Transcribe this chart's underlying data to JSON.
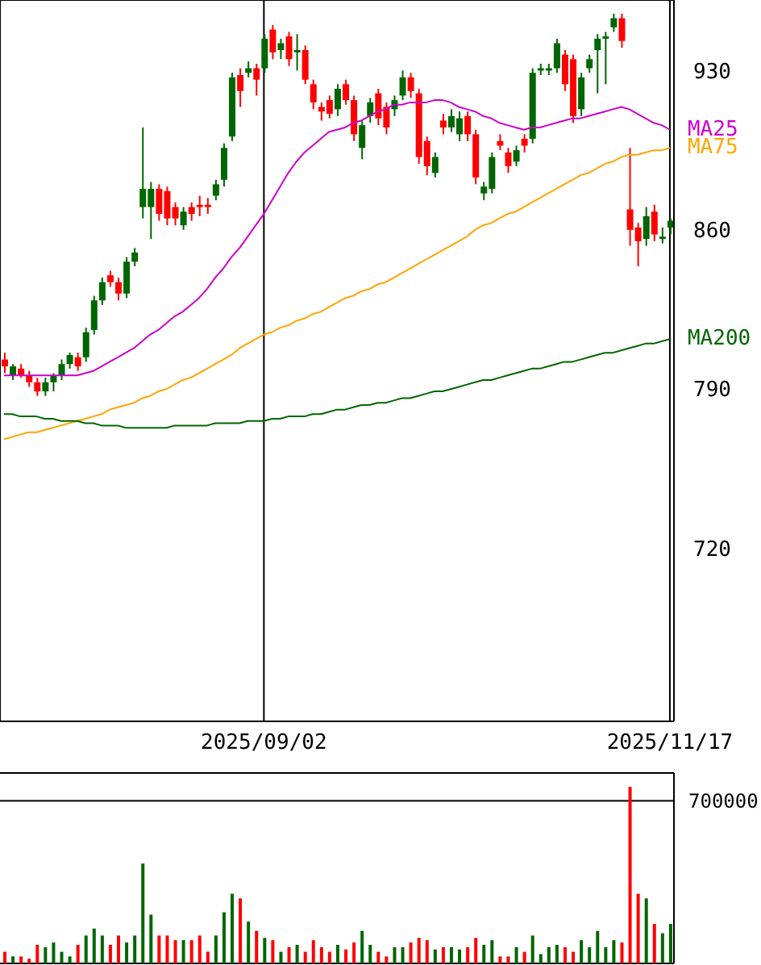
{
  "chart_data": [
    {
      "type": "candlestick",
      "categories": [
        null,
        null,
        null,
        null,
        null,
        null,
        null,
        null,
        null,
        null,
        null,
        null,
        null,
        null,
        null,
        null,
        null,
        null,
        null,
        null,
        null,
        null,
        null,
        null,
        null,
        null,
        null,
        null,
        null,
        null,
        null,
        null,
        "2025/09/02",
        null,
        null,
        null,
        null,
        null,
        null,
        null,
        null,
        null,
        null,
        null,
        null,
        null,
        null,
        null,
        null,
        null,
        null,
        null,
        null,
        null,
        null,
        null,
        null,
        null,
        null,
        null,
        null,
        null,
        null,
        null,
        null,
        null,
        null,
        null,
        null,
        null,
        null,
        null,
        null,
        null,
        null,
        null,
        null,
        null,
        null,
        null,
        null,
        null,
        "2025/11/17"
      ],
      "ohlc": [
        [
          803,
          806,
          797,
          800
        ],
        [
          796,
          801,
          794,
          800
        ],
        [
          799,
          801,
          795,
          796
        ],
        [
          796,
          798,
          791,
          793
        ],
        [
          793,
          795,
          787,
          789
        ],
        [
          789,
          795,
          787,
          793
        ],
        [
          793,
          797,
          789,
          796
        ],
        [
          796,
          803,
          794,
          801
        ],
        [
          801,
          806,
          799,
          805
        ],
        [
          804,
          806,
          798,
          800
        ],
        [
          804,
          817,
          802,
          815
        ],
        [
          816,
          831,
          814,
          829
        ],
        [
          829,
          839,
          827,
          837
        ],
        [
          840,
          842,
          835,
          837
        ],
        [
          837,
          839,
          829,
          832
        ],
        [
          832,
          848,
          830,
          846
        ],
        [
          846,
          852,
          844,
          850
        ],
        [
          870,
          905,
          865,
          878
        ],
        [
          870,
          881,
          856,
          878
        ],
        [
          878,
          880,
          864,
          867
        ],
        [
          877,
          879,
          862,
          865
        ],
        [
          870,
          872,
          862,
          865
        ],
        [
          862,
          870,
          860,
          868
        ],
        [
          870,
          872,
          864,
          867
        ],
        [
          871,
          875,
          866,
          870
        ],
        [
          871,
          874,
          867,
          870
        ],
        [
          875,
          882,
          873,
          880
        ],
        [
          882,
          898,
          879,
          896
        ],
        [
          901,
          929,
          899,
          927
        ],
        [
          928,
          931,
          914,
          921
        ],
        [
          929,
          934,
          927,
          931
        ],
        [
          931,
          933,
          919,
          926
        ],
        [
          931,
          946,
          929,
          944
        ],
        [
          948,
          950,
          935,
          938
        ],
        [
          939,
          944,
          935,
          942
        ],
        [
          945,
          947,
          932,
          935
        ],
        [
          938,
          946,
          930,
          939
        ],
        [
          939,
          941,
          924,
          926
        ],
        [
          924,
          926,
          913,
          916
        ],
        [
          914,
          916,
          908,
          912
        ],
        [
          917,
          919,
          909,
          911
        ],
        [
          913,
          924,
          910,
          922
        ],
        [
          924,
          926,
          915,
          917
        ],
        [
          917,
          919,
          899,
          902
        ],
        [
          896,
          908,
          891,
          906
        ],
        [
          910,
          918,
          907,
          916
        ],
        [
          920,
          922,
          906,
          909
        ],
        [
          914,
          916,
          902,
          905
        ],
        [
          913,
          919,
          910,
          917
        ],
        [
          919,
          930,
          917,
          927
        ],
        [
          927,
          929,
          918,
          921
        ],
        [
          920,
          922,
          889,
          892
        ],
        [
          899,
          901,
          884,
          888
        ],
        [
          885,
          894,
          883,
          892
        ],
        [
          908,
          911,
          902,
          905
        ],
        [
          905,
          913,
          903,
          910
        ],
        [
          902,
          912,
          899,
          909
        ],
        [
          910,
          912,
          899,
          902
        ],
        [
          902,
          904,
          880,
          883
        ],
        [
          876,
          881,
          873,
          879
        ],
        [
          878,
          894,
          876,
          892
        ],
        [
          899,
          902,
          895,
          897
        ],
        [
          894,
          896,
          885,
          888
        ],
        [
          890,
          897,
          888,
          895
        ],
        [
          900,
          902,
          894,
          897
        ],
        [
          900,
          931,
          898,
          929
        ],
        [
          930,
          933,
          928,
          931
        ],
        [
          930,
          933,
          928,
          931
        ],
        [
          931,
          944,
          929,
          942
        ],
        [
          937,
          939,
          921,
          924
        ],
        [
          935,
          937,
          907,
          910
        ],
        [
          913,
          929,
          910,
          927
        ],
        [
          931,
          937,
          929,
          935
        ],
        [
          939,
          946,
          920,
          944
        ],
        [
          944,
          947,
          924,
          945
        ],
        [
          949,
          955,
          947,
          953
        ],
        [
          953,
          955,
          940,
          943
        ],
        [
          869,
          896,
          853,
          860
        ],
        [
          861,
          863,
          844,
          855
        ],
        [
          856,
          870,
          853,
          866
        ],
        [
          868,
          871,
          855,
          858
        ],
        [
          856,
          861,
          854,
          857
        ],
        [
          861,
          865,
          858,
          864
        ]
      ],
      "colors": [
        "#ff0000",
        "#006600",
        "#ff0000",
        "#ff0000",
        "#ff0000",
        "#006600",
        "#006600",
        "#006600",
        "#006600",
        "#ff0000",
        "#006600",
        "#006600",
        "#006600",
        "#ff0000",
        "#ff0000",
        "#006600",
        "#006600",
        "#006600",
        "#006600",
        "#ff0000",
        "#ff0000",
        "#ff0000",
        "#006600",
        "#ff0000",
        "#ff0000",
        "#ff0000",
        "#006600",
        "#006600",
        "#006600",
        "#ff0000",
        "#006600",
        "#ff0000",
        "#006600",
        "#ff0000",
        "#006600",
        "#ff0000",
        "#006600",
        "#ff0000",
        "#ff0000",
        "#ff0000",
        "#ff0000",
        "#006600",
        "#ff0000",
        "#ff0000",
        "#006600",
        "#006600",
        "#ff0000",
        "#ff0000",
        "#006600",
        "#006600",
        "#ff0000",
        "#ff0000",
        "#ff0000",
        "#006600",
        "#ff0000",
        "#006600",
        "#006600",
        "#ff0000",
        "#ff0000",
        "#006600",
        "#006600",
        "#ff0000",
        "#ff0000",
        "#006600",
        "#ff0000",
        "#006600",
        "#006600",
        "#006600",
        "#006600",
        "#ff0000",
        "#ff0000",
        "#006600",
        "#006600",
        "#006600",
        "#006600",
        "#006600",
        "#ff0000",
        "#ff0000",
        "#ff0000",
        "#006600",
        "#ff0000",
        "#006600",
        "#006600"
      ],
      "series": [
        {
          "name": "MA25",
          "type": "line",
          "color": "#cc00cc",
          "values": [
            796,
            796,
            796,
            796,
            796,
            796,
            796,
            796,
            796,
            796,
            797,
            798,
            800,
            802,
            804,
            806,
            808,
            811,
            814,
            816,
            819,
            822,
            824,
            827,
            830,
            834,
            839,
            843,
            848,
            852,
            857,
            862,
            867,
            873,
            879,
            885,
            890,
            894,
            897,
            900,
            903,
            904,
            905,
            907,
            908,
            910,
            912,
            913,
            915,
            915,
            916,
            916,
            916,
            917,
            917,
            916,
            914,
            913,
            912,
            910,
            909,
            907,
            906,
            905,
            904,
            905,
            905,
            906,
            907,
            908,
            909,
            909,
            910,
            911,
            912,
            913,
            914,
            913,
            911,
            909,
            907,
            906,
            904
          ]
        },
        {
          "name": "MA75",
          "type": "line",
          "color": "#ffa500",
          "values": [
            768,
            769,
            770,
            771,
            771,
            772,
            773,
            774,
            775,
            776,
            777,
            778,
            779,
            781,
            782,
            783,
            784,
            786,
            787,
            789,
            790,
            792,
            794,
            795,
            797,
            799,
            801,
            803,
            805,
            808,
            810,
            812,
            814,
            815,
            817,
            818,
            820,
            821,
            823,
            824,
            826,
            828,
            830,
            831,
            833,
            834,
            836,
            837,
            839,
            841,
            843,
            845,
            847,
            849,
            851,
            853,
            855,
            857,
            860,
            862,
            863,
            865,
            867,
            868,
            870,
            872,
            874,
            876,
            878,
            880,
            882,
            884,
            885,
            887,
            889,
            890,
            892,
            893,
            893,
            894,
            895,
            895,
            896
          ]
        },
        {
          "name": "MA200",
          "type": "line",
          "color": "#006600",
          "values": [
            779,
            779,
            778,
            778,
            778,
            777,
            777,
            776,
            776,
            776,
            775,
            775,
            774,
            774,
            774,
            773,
            773,
            773,
            773,
            773,
            773,
            774,
            774,
            774,
            774,
            774,
            775,
            775,
            775,
            775,
            776,
            776,
            776,
            777,
            777,
            778,
            778,
            778,
            779,
            779,
            780,
            781,
            781,
            782,
            783,
            783,
            784,
            784,
            785,
            786,
            786,
            787,
            788,
            789,
            789,
            790,
            791,
            792,
            793,
            794,
            794,
            795,
            796,
            797,
            798,
            799,
            799,
            800,
            801,
            802,
            802,
            803,
            804,
            805,
            806,
            806,
            807,
            808,
            809,
            810,
            810,
            811,
            812
          ]
        }
      ],
      "ylim": [
        644,
        961
      ],
      "yticks": [
        720,
        790,
        860,
        930
      ],
      "grid": true
    },
    {
      "type": "bar",
      "categories": [
        null,
        null,
        null,
        null,
        null,
        null,
        null,
        null,
        null,
        null,
        null,
        null,
        null,
        null,
        null,
        null,
        null,
        null,
        null,
        null,
        null,
        null,
        null,
        null,
        null,
        null,
        null,
        null,
        null,
        null,
        null,
        null,
        null,
        null,
        null,
        null,
        null,
        null,
        null,
        null,
        null,
        null,
        null,
        null,
        null,
        null,
        null,
        null,
        null,
        null,
        null,
        null,
        null,
        null,
        null,
        null,
        null,
        null,
        null,
        null,
        null,
        null,
        null,
        null,
        null,
        null,
        null,
        null,
        null,
        null,
        null,
        null,
        null,
        null,
        null,
        null,
        null,
        null,
        null,
        null,
        null,
        null,
        null
      ],
      "values": [
        50000,
        30000,
        30000,
        20000,
        80000,
        70000,
        90000,
        50000,
        30000,
        80000,
        120000,
        150000,
        120000,
        80000,
        120000,
        90000,
        120000,
        430000,
        210000,
        120000,
        120000,
        100000,
        100000,
        100000,
        120000,
        50000,
        120000,
        220000,
        300000,
        280000,
        180000,
        140000,
        110000,
        100000,
        50000,
        70000,
        80000,
        50000,
        100000,
        70000,
        50000,
        80000,
        60000,
        90000,
        140000,
        80000,
        50000,
        30000,
        70000,
        70000,
        90000,
        110000,
        100000,
        60000,
        70000,
        70000,
        60000,
        70000,
        110000,
        80000,
        100000,
        30000,
        30000,
        70000,
        50000,
        120000,
        40000,
        70000,
        80000,
        70000,
        50000,
        100000,
        70000,
        140000,
        70000,
        100000,
        90000,
        760000,
        300000,
        280000,
        170000,
        130000,
        170000
      ],
      "colors": [
        "#ff0000",
        "#006600",
        "#ff0000",
        "#ff0000",
        "#ff0000",
        "#006600",
        "#006600",
        "#006600",
        "#006600",
        "#ff0000",
        "#006600",
        "#006600",
        "#006600",
        "#ff0000",
        "#ff0000",
        "#006600",
        "#006600",
        "#006600",
        "#006600",
        "#ff0000",
        "#ff0000",
        "#ff0000",
        "#006600",
        "#ff0000",
        "#ff0000",
        "#ff0000",
        "#006600",
        "#006600",
        "#006600",
        "#ff0000",
        "#006600",
        "#ff0000",
        "#006600",
        "#ff0000",
        "#006600",
        "#ff0000",
        "#006600",
        "#ff0000",
        "#ff0000",
        "#ff0000",
        "#ff0000",
        "#006600",
        "#ff0000",
        "#ff0000",
        "#006600",
        "#006600",
        "#ff0000",
        "#ff0000",
        "#006600",
        "#006600",
        "#ff0000",
        "#ff0000",
        "#ff0000",
        "#006600",
        "#ff0000",
        "#006600",
        "#006600",
        "#ff0000",
        "#ff0000",
        "#006600",
        "#006600",
        "#ff0000",
        "#ff0000",
        "#006600",
        "#ff0000",
        "#006600",
        "#006600",
        "#006600",
        "#006600",
        "#ff0000",
        "#ff0000",
        "#006600",
        "#006600",
        "#006600",
        "#006600",
        "#006600",
        "#ff0000",
        "#ff0000",
        "#ff0000",
        "#006600",
        "#ff0000",
        "#006600",
        "#006600"
      ],
      "ylim": [
        0,
        820000
      ],
      "yticks": [
        700000
      ],
      "grid": "y",
      "tick_labels": "y"
    }
  ]
}
